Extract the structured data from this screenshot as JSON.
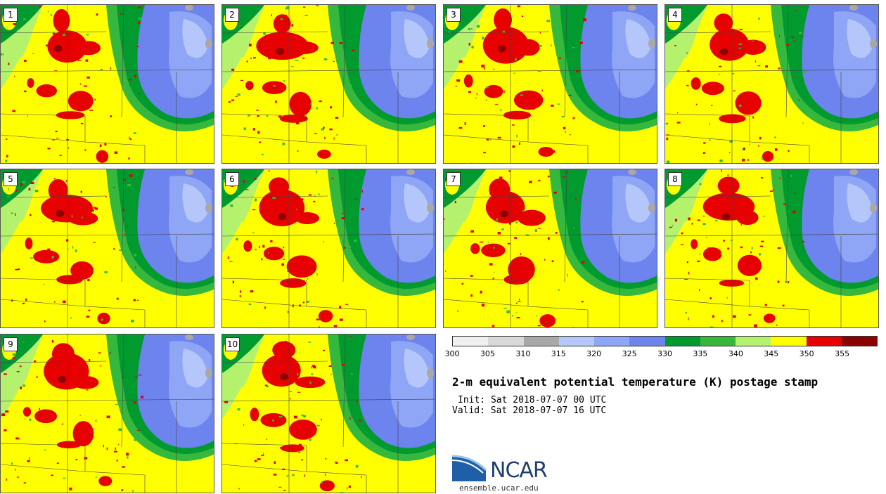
{
  "panels": [
    {
      "label": "1"
    },
    {
      "label": "2"
    },
    {
      "label": "3"
    },
    {
      "label": "4"
    },
    {
      "label": "5"
    },
    {
      "label": "6"
    },
    {
      "label": "7"
    },
    {
      "label": "8"
    },
    {
      "label": "9"
    },
    {
      "label": "10"
    }
  ],
  "colorbar": {
    "colors": [
      "#f0f0f0",
      "#d8d8d8",
      "#a8a8a8",
      "#b4c6fa",
      "#8fa5f5",
      "#6d84ee",
      "#009a2e",
      "#36b83e",
      "#b4f26e",
      "#ffff00",
      "#e60000",
      "#8c0000"
    ],
    "ticks": [
      "300",
      "305",
      "310",
      "315",
      "320",
      "325",
      "330",
      "335",
      "340",
      "345",
      "350",
      "355"
    ]
  },
  "map_colors": {
    "low": "#6d84ee",
    "low_light": "#8fa5f5",
    "pale": "#b4c6fa",
    "dark_green": "#009a2e",
    "green": "#36b83e",
    "light_green": "#b4f26e",
    "yellow": "#ffff00",
    "red": "#e60000",
    "dark_red": "#8c0000",
    "gray": "#a8a8a8"
  },
  "title": "2-m equivalent potential temperature (K) postage stamp",
  "init": "Init: Sat 2018-07-07 00 UTC",
  "valid": "Valid: Sat 2018-07-07 16 UTC",
  "logo": {
    "text": "NCAR",
    "site": "ensemble.ucar.edu"
  }
}
